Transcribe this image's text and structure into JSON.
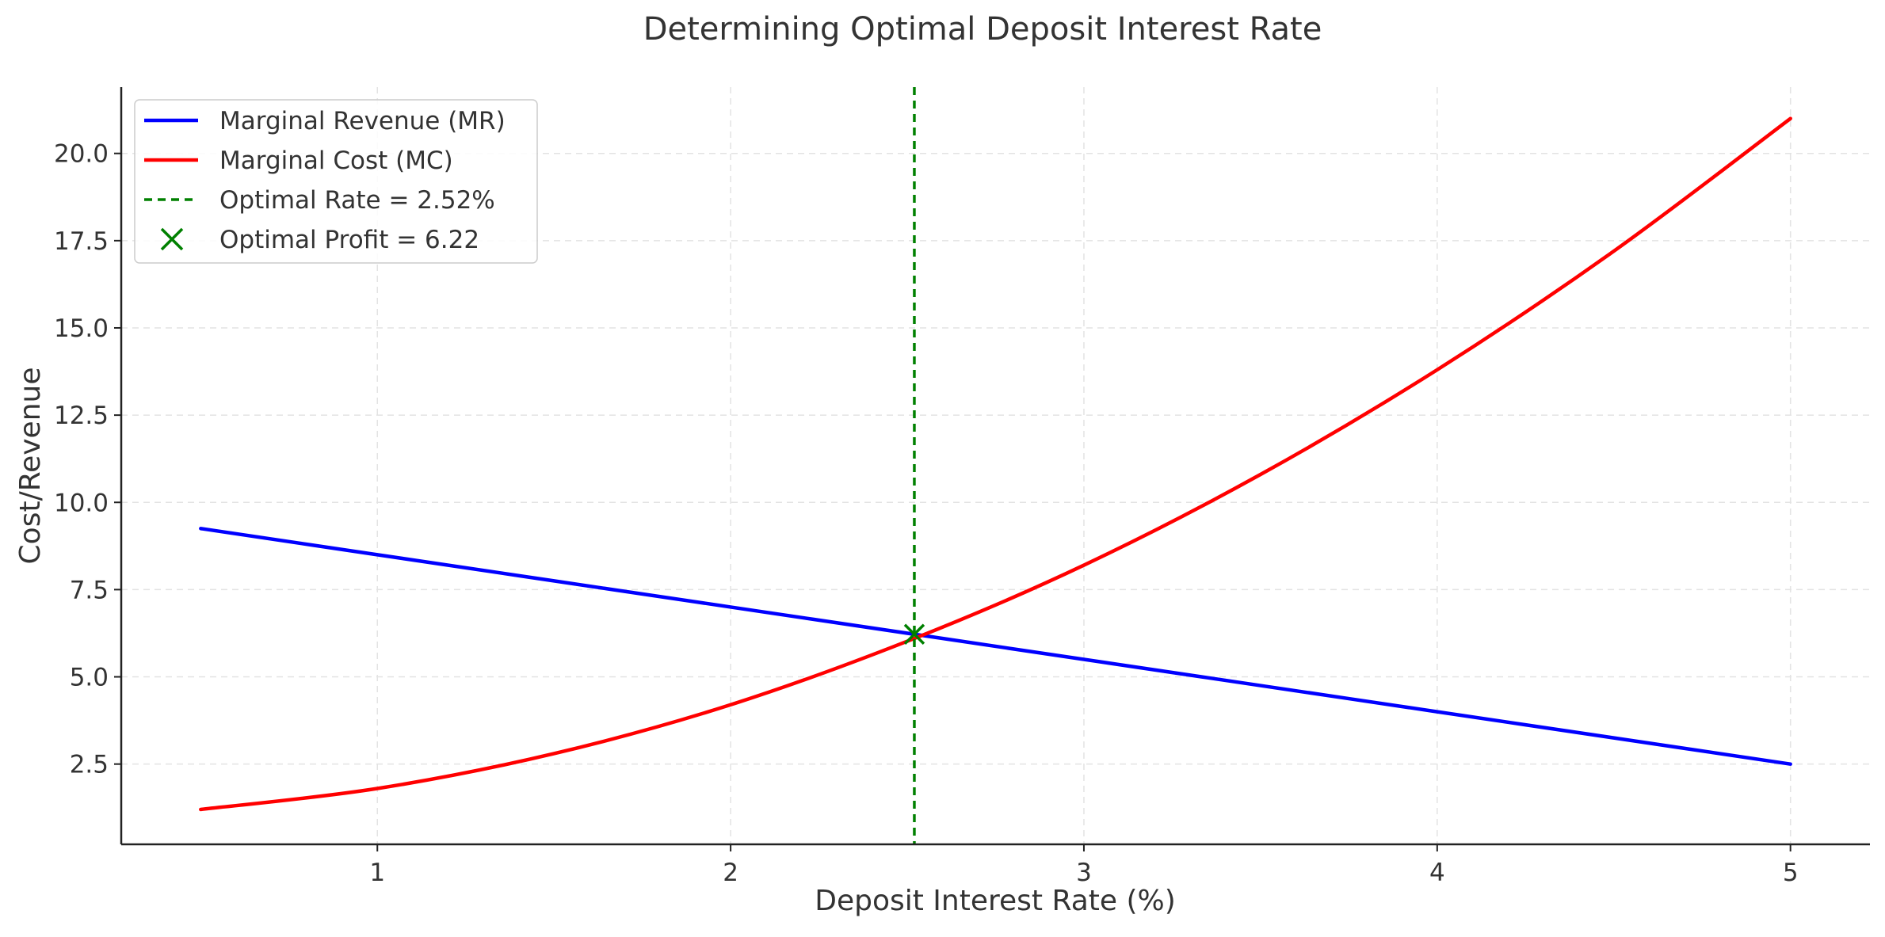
{
  "chart_data": {
    "type": "line",
    "title": "Determining Optimal Deposit Interest Rate",
    "xlabel": "Deposit Interest Rate (%)",
    "ylabel": "Cost/Revenue",
    "xlim": [
      0.275,
      5.225
    ],
    "ylim": [
      0.2,
      21.9
    ],
    "x_ticks": [
      1,
      2,
      3,
      4,
      5
    ],
    "x_tick_labels": [
      "1",
      "2",
      "3",
      "4",
      "5"
    ],
    "y_ticks": [
      2.5,
      5.0,
      7.5,
      10.0,
      12.5,
      15.0,
      17.5,
      20.0
    ],
    "y_tick_labels": [
      "2.5",
      "5.0",
      "7.5",
      "10.0",
      "12.5",
      "15.0",
      "17.5",
      "20.0"
    ],
    "grid": true,
    "legend_position": "top-left",
    "series": [
      {
        "name": "Marginal Revenue (MR)",
        "style": "solid",
        "color": "#0000ff",
        "x": [
          0.5,
          1.0,
          1.5,
          2.0,
          2.52,
          3.0,
          3.5,
          4.0,
          4.5,
          5.0
        ],
        "y": [
          9.25,
          8.5,
          7.75,
          7.0,
          6.22,
          5.5,
          4.75,
          4.0,
          3.25,
          2.5
        ]
      },
      {
        "name": "Marginal Cost (MC)",
        "style": "solid",
        "color": "#ff0000",
        "x": [
          0.5,
          1.0,
          1.5,
          2.0,
          2.52,
          3.0,
          3.5,
          4.0,
          4.5,
          5.0
        ],
        "y": [
          1.2,
          1.8,
          2.8,
          4.2,
          6.1,
          8.2,
          10.8,
          13.8,
          17.2,
          21.0
        ]
      }
    ],
    "vline": {
      "name": "Optimal Rate = 2.52%",
      "x": 2.52,
      "style": "dashed",
      "color": "#008000"
    },
    "marker": {
      "name": "Optimal Profit = 6.22",
      "x": 2.52,
      "y": 6.22,
      "symbol": "x",
      "color": "#008000"
    }
  }
}
